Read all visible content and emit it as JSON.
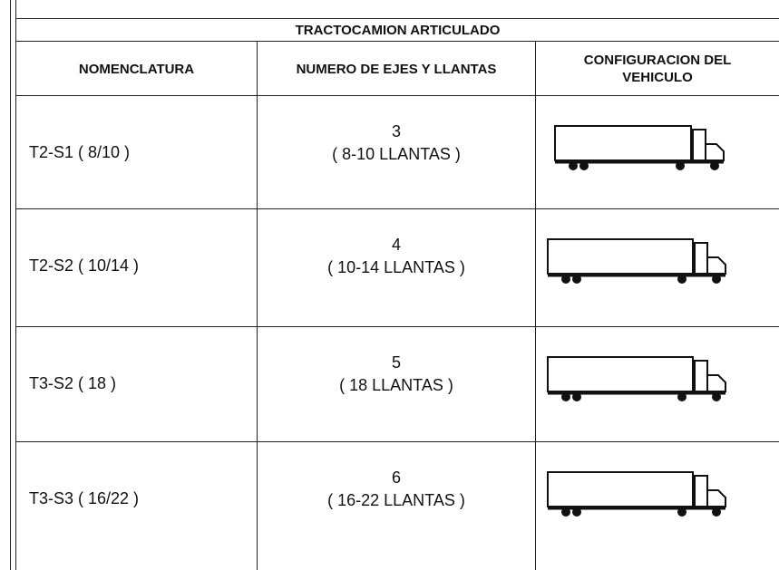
{
  "header": {
    "title": "TRACTOCAMION ARTICULADO"
  },
  "table": {
    "columns": [
      "NOMENCLATURA",
      "NUMERO DE EJES Y LLANTAS",
      "CONFIGURACION DEL VEHICULO"
    ],
    "rows": [
      [
        "T2-S1 ( 8/10 )",
        3,
        "( 8-10 LLANTAS )"
      ],
      [
        "T2-S2 ( 10/14 )",
        4,
        "( 10-14 LLANTAS )"
      ],
      [
        "T3-S2 ( 18 )",
        5,
        "( 18 LLANTAS )"
      ],
      [
        "T3-S3 ( 16/22 )",
        6,
        "( 16-22 LLANTAS )"
      ]
    ]
  }
}
